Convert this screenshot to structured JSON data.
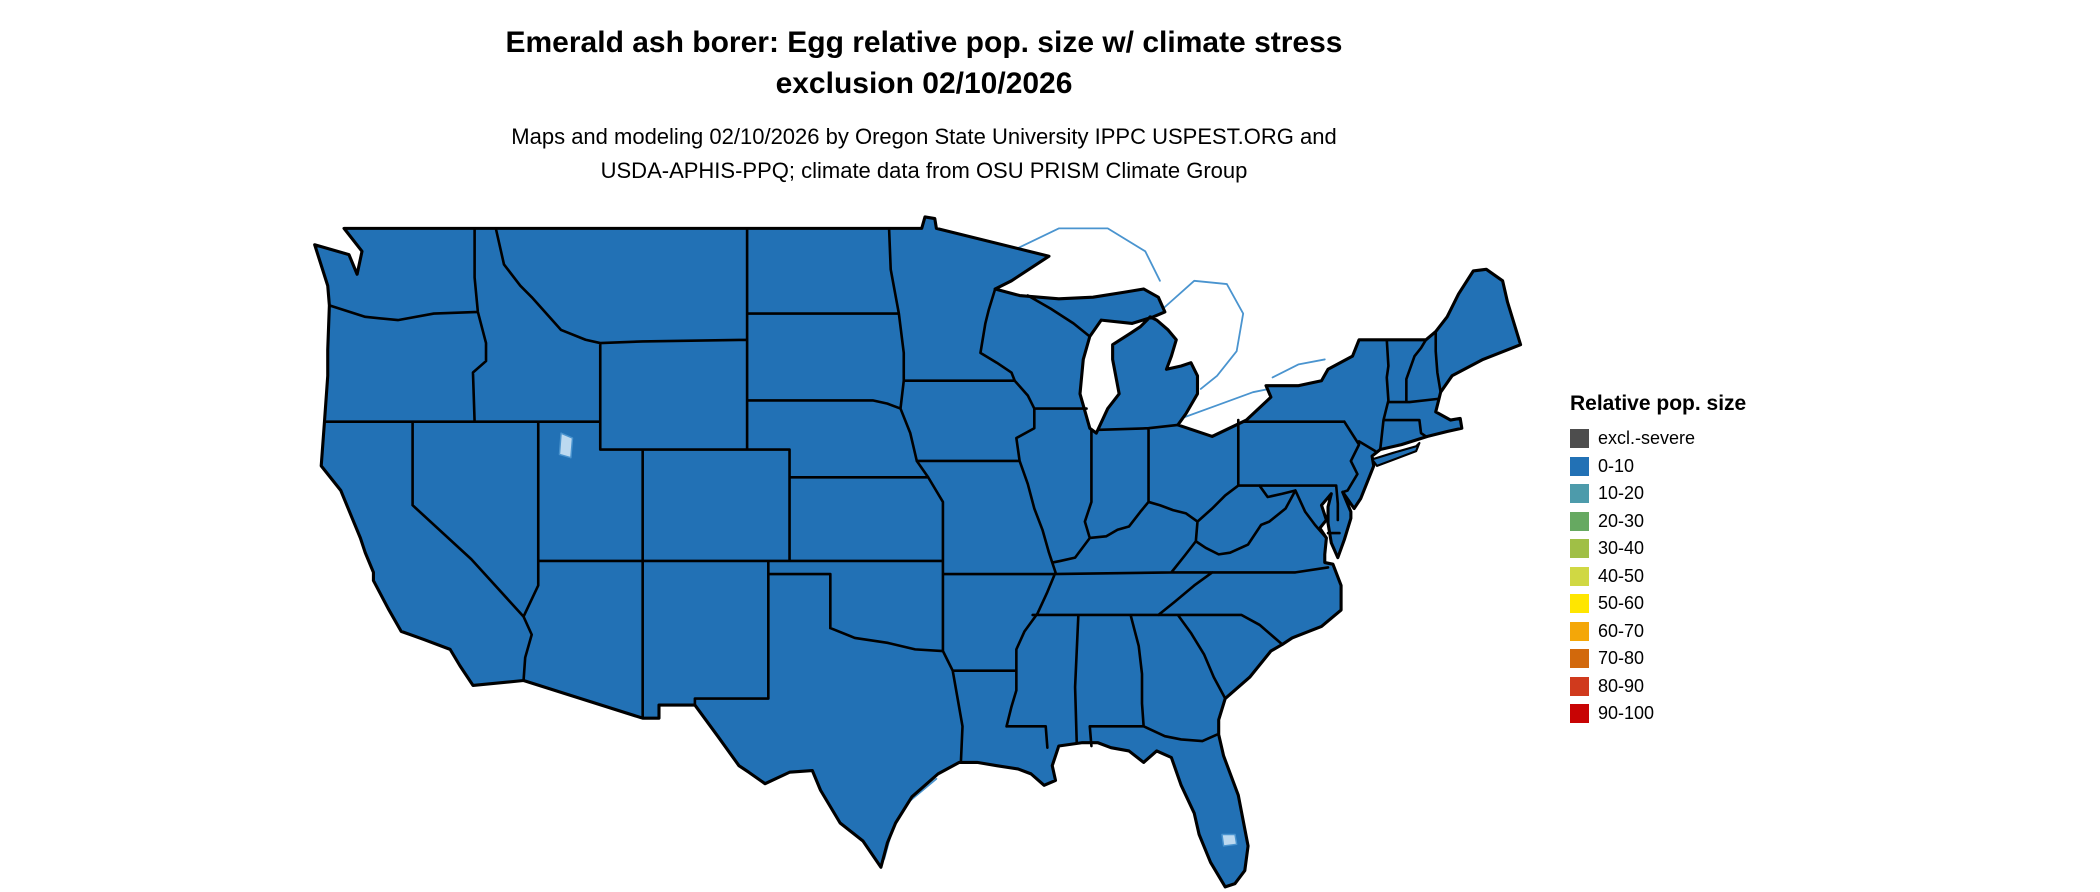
{
  "title": {
    "line1": "Emerald ash borer: Egg relative pop. size w/ climate stress",
    "line2": "exclusion 02/10/2026"
  },
  "subtitle": {
    "line1": "Maps and modeling 02/10/2026 by Oregon State University IPPC USPEST.ORG and",
    "line2": "USDA-APHIS-PPQ; climate data from OSU PRISM Climate Group"
  },
  "legend": {
    "title": "Relative pop. size",
    "items": [
      {
        "label": "excl.-severe",
        "color": "#4d4d4d"
      },
      {
        "label": "0-10",
        "color": "#2271b5"
      },
      {
        "label": "10-20",
        "color": "#4d9bab"
      },
      {
        "label": "20-30",
        "color": "#66a961"
      },
      {
        "label": "30-40",
        "color": "#a0bf46"
      },
      {
        "label": "40-50",
        "color": "#d0d843"
      },
      {
        "label": "50-60",
        "color": "#ffe600"
      },
      {
        "label": "60-70",
        "color": "#f4a708"
      },
      {
        "label": "70-80",
        "color": "#d2690c"
      },
      {
        "label": "80-90",
        "color": "#d03a1d"
      },
      {
        "label": "90-100",
        "color": "#c80404"
      }
    ]
  },
  "map": {
    "region": "Contiguous United States",
    "fill_category": "0-10",
    "fill_color": "#2271b5",
    "border_color": "#000000",
    "water_outline_color": "#4a94cf",
    "water_fill_color": "#bcd9f0"
  },
  "chart_data": {
    "type": "heatmap",
    "subtype": "choropleth-map",
    "region": "Contiguous United States (CONUS), state boundaries shown",
    "variable": "Emerald ash borer egg relative population size with climate stress exclusion",
    "date": "02/10/2026",
    "bins": [
      "excl.-severe",
      "0-10",
      "10-20",
      "20-30",
      "30-40",
      "40-50",
      "50-60",
      "60-70",
      "70-80",
      "80-90",
      "90-100"
    ],
    "bin_colors": [
      "#4d4d4d",
      "#2271b5",
      "#4d9bab",
      "#66a961",
      "#a0bf46",
      "#d0d843",
      "#ffe600",
      "#f4a708",
      "#d2690c",
      "#d03a1d",
      "#c80404"
    ],
    "observed": "Entire mapped CONUS area is rendered in the 0-10 bin (uniform blue fill)",
    "legend_position": "right",
    "legend_title": "Relative pop. size"
  }
}
